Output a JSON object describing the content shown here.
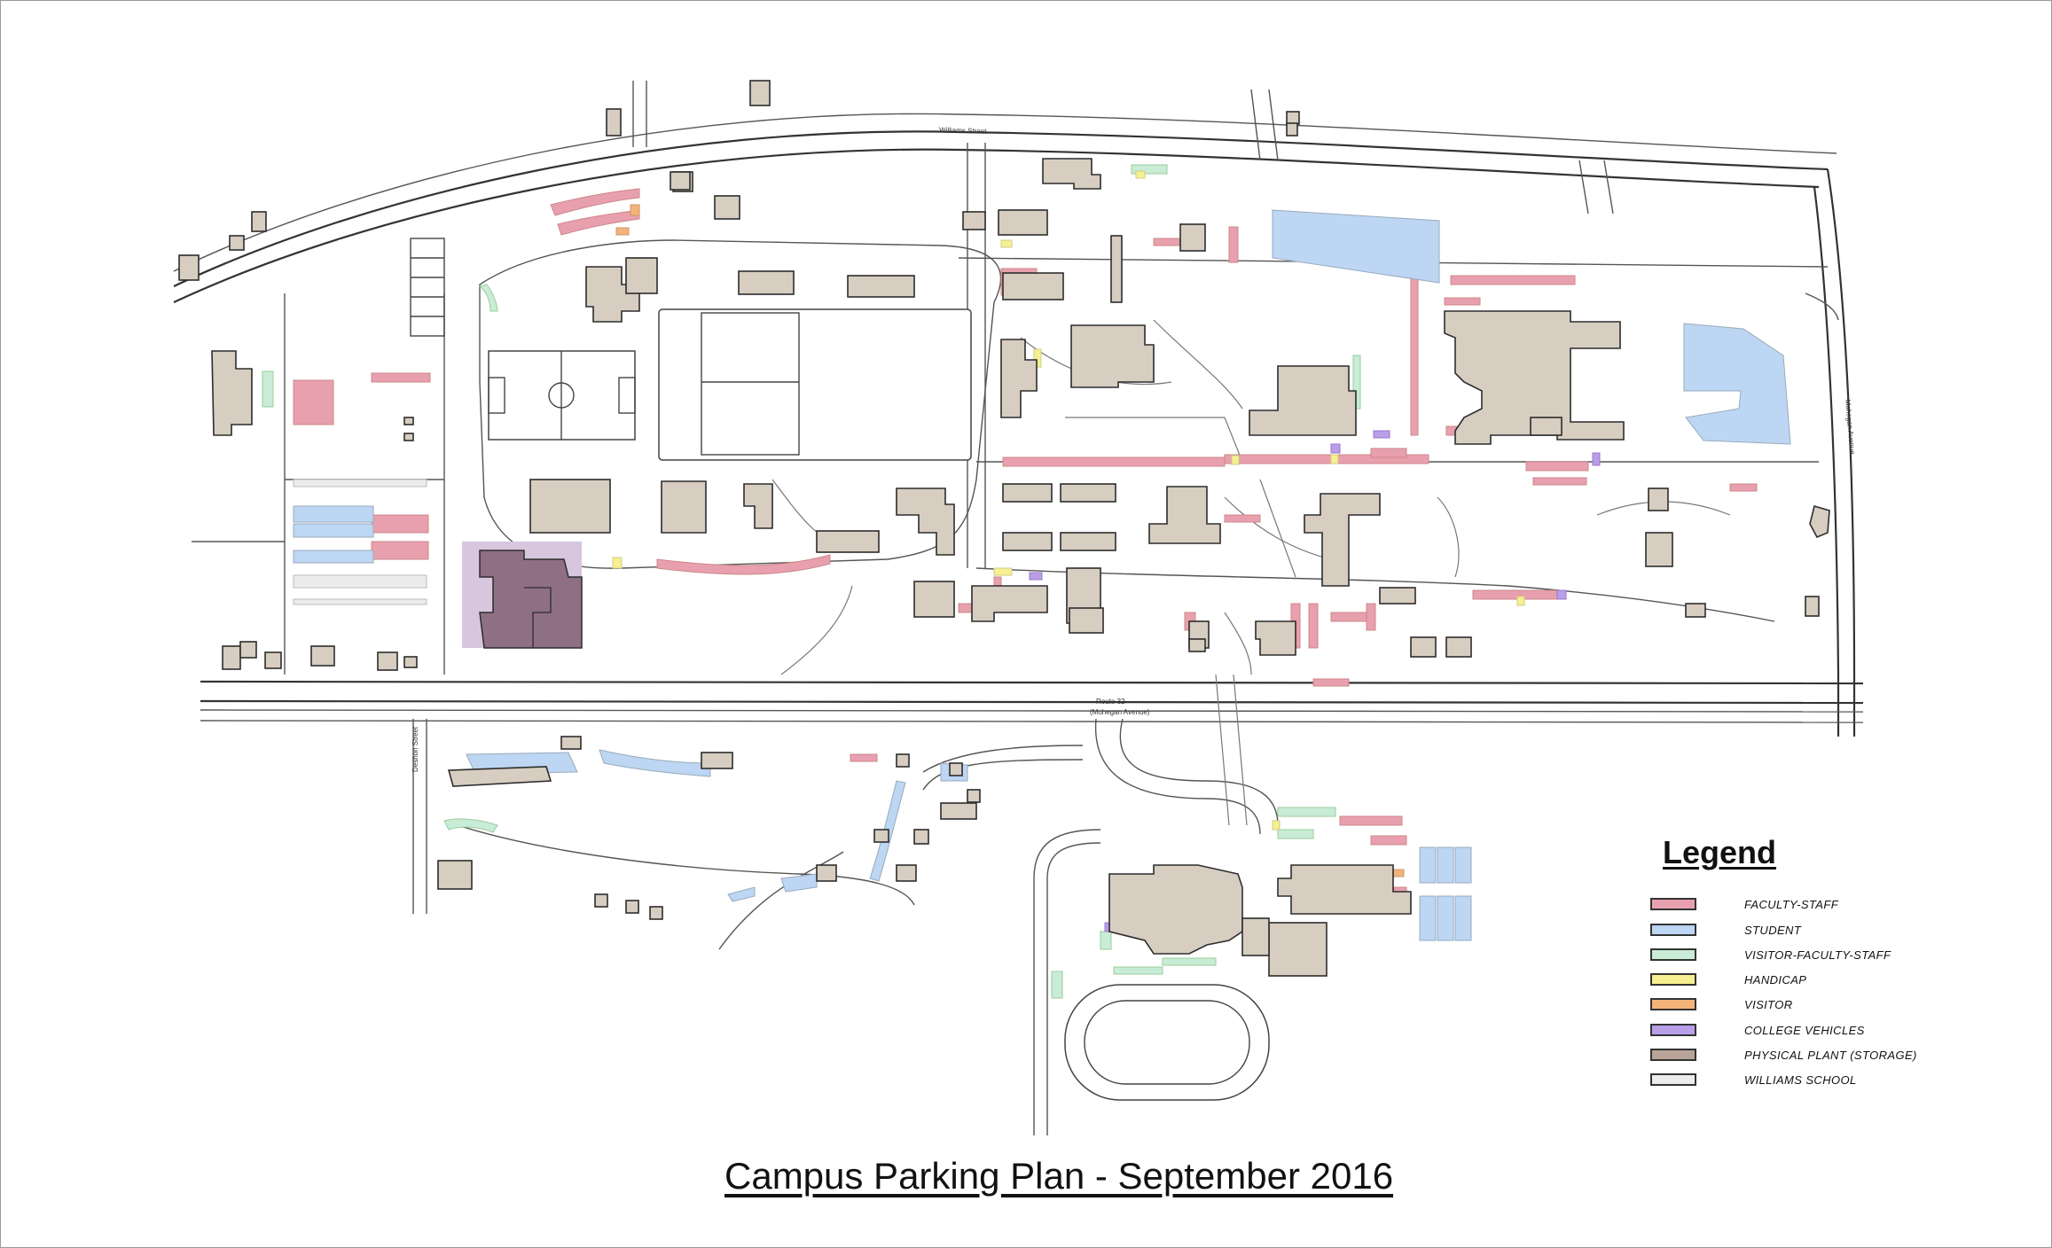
{
  "title": "Campus Parking Plan - September 2016",
  "streets": {
    "williams": "Williams Street",
    "route": "Route 32",
    "route_sub": "(Mohegan Avenue)",
    "deshon": "Deshon Street",
    "mohegan": "Mohegan Avenue"
  },
  "legend": {
    "title": "Legend",
    "items": [
      {
        "label": "FACULTY-STAFF",
        "color": "#e8a0ae"
      },
      {
        "label": "STUDENT",
        "color": "#bcd6f3"
      },
      {
        "label": "VISITOR-FACULTY-STAFF",
        "color": "#c9ecd6"
      },
      {
        "label": "HANDICAP",
        "color": "#f7f090"
      },
      {
        "label": "VISITOR",
        "color": "#f3b37a"
      },
      {
        "label": "COLLEGE VEHICLES",
        "color": "#b99ee8"
      },
      {
        "label": "PHYSICAL PLANT (STORAGE)",
        "color": "#b9a49a"
      },
      {
        "label": "WILLIAMS SCHOOL",
        "color": "#ececec"
      }
    ]
  },
  "colors": {
    "building": "#d7cdc1",
    "faculty": "#e8a0ae",
    "student": "#bcd6f3",
    "visitor_faculty": "#c9ecd6",
    "handicap": "#f7f090",
    "visitor": "#f3b37a",
    "college_vehicles": "#b99ee8",
    "physical_plant": "#b9a49a",
    "williams_school": "#ececec",
    "storage_purple": "#8f6f86"
  }
}
